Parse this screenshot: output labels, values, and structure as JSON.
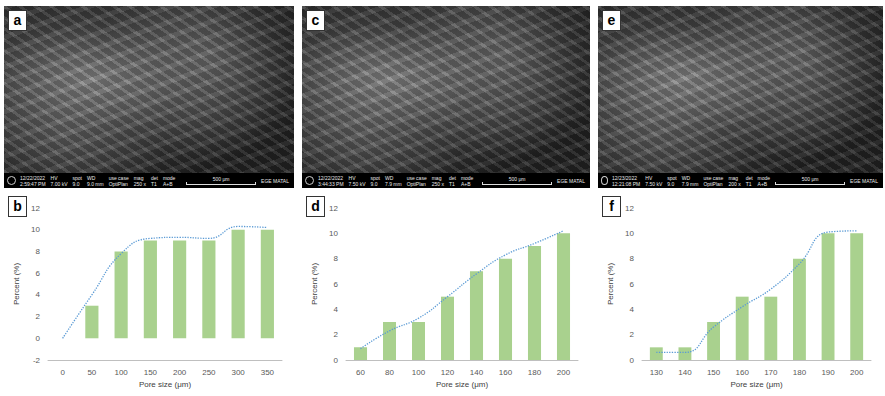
{
  "panels": [
    {
      "label": "a",
      "date": "12/22/2022",
      "time": "2:59:47 PM",
      "info": [
        {
          "head": "HV",
          "value": "7.00 kV"
        },
        {
          "head": "spot",
          "value": "9.0"
        },
        {
          "head": "WD",
          "value": "9.0 mm"
        },
        {
          "head": "use case",
          "value": "OptiPlan"
        },
        {
          "head": "mag",
          "value": "250 x"
        },
        {
          "head": "det",
          "value": "T1"
        },
        {
          "head": "mode",
          "value": "A+B"
        }
      ],
      "scale_bar": "500 μm",
      "lab": "EGE MATAL"
    },
    {
      "label": "c",
      "date": "12/22/2022",
      "time": "3:44:33 PM",
      "info": [
        {
          "head": "HV",
          "value": "7.50 kV"
        },
        {
          "head": "spot",
          "value": "9.0"
        },
        {
          "head": "WD",
          "value": "7.9 mm"
        },
        {
          "head": "use case",
          "value": "OptiPlan"
        },
        {
          "head": "mag",
          "value": "250 x"
        },
        {
          "head": "det",
          "value": "T1"
        },
        {
          "head": "mode",
          "value": "A+B"
        }
      ],
      "scale_bar": "500 μm",
      "lab": "EGE MATAL"
    },
    {
      "label": "e",
      "date": "12/23/2022",
      "time": "12:21:08 PM",
      "info": [
        {
          "head": "HV",
          "value": "7.50 kV"
        },
        {
          "head": "spot",
          "value": "9.0"
        },
        {
          "head": "WD",
          "value": "7.9 mm"
        },
        {
          "head": "use case",
          "value": "OptiPlan"
        },
        {
          "head": "mag",
          "value": "200 x"
        },
        {
          "head": "det",
          "value": "T1"
        },
        {
          "head": "mode",
          "value": "A+B"
        }
      ],
      "scale_bar": "500 μm",
      "lab": "EGE MATAL"
    }
  ],
  "chart_data": [
    {
      "type": "bar",
      "panel_label": "b",
      "x_label": "Pore size (μm)",
      "y_label": "Percent (%)",
      "categories": [
        "0",
        "50",
        "100",
        "150",
        "200",
        "250",
        "300",
        "350"
      ],
      "series": [
        {
          "type": "bar",
          "color": "#a9d18e",
          "values": [
            0,
            3,
            8,
            9,
            9,
            9,
            10,
            10
          ]
        },
        {
          "type": "line",
          "color": "#5b9bd5",
          "line_style": "dotted",
          "values": [
            0,
            4,
            7.8,
            9.2,
            9.3,
            9.2,
            10.3,
            10.2
          ]
        }
      ],
      "ylim": [
        -2,
        12
      ],
      "yticks": [
        -2,
        0,
        2,
        4,
        6,
        8,
        10,
        12
      ],
      "grid": false
    },
    {
      "type": "bar",
      "panel_label": "d",
      "x_label": "Pore size (μm)",
      "y_label": "Percent (%)",
      "categories": [
        "60",
        "80",
        "100",
        "120",
        "140",
        "160",
        "180",
        "200"
      ],
      "series": [
        {
          "type": "bar",
          "color": "#a9d18e",
          "values": [
            1,
            3,
            3,
            5,
            7,
            8,
            9,
            10
          ]
        },
        {
          "type": "line",
          "color": "#5b9bd5",
          "line_style": "dotted",
          "values": [
            0.9,
            2.3,
            3.3,
            5,
            6.8,
            8.3,
            9.2,
            10.2
          ]
        }
      ],
      "ylim": [
        0,
        12
      ],
      "yticks": [
        0,
        2,
        4,
        6,
        8,
        10,
        12
      ],
      "grid": false
    },
    {
      "type": "bar",
      "panel_label": "f",
      "x_label": "Pore size (μm)",
      "y_label": "Percent (%)",
      "categories": [
        "130",
        "140",
        "150",
        "160",
        "170",
        "180",
        "190",
        "200"
      ],
      "series": [
        {
          "type": "bar",
          "color": "#a9d18e",
          "values": [
            1,
            1,
            3,
            5,
            5,
            8,
            10,
            10
          ]
        },
        {
          "type": "line",
          "color": "#5b9bd5",
          "line_style": "dotted",
          "values": [
            0.6,
            0.6,
            2.6,
            4.2,
            5.6,
            7.6,
            10.1,
            10.2
          ]
        }
      ],
      "ylim": [
        0,
        12
      ],
      "yticks": [
        0,
        2,
        4,
        6,
        8,
        10,
        12
      ],
      "grid": false
    }
  ]
}
